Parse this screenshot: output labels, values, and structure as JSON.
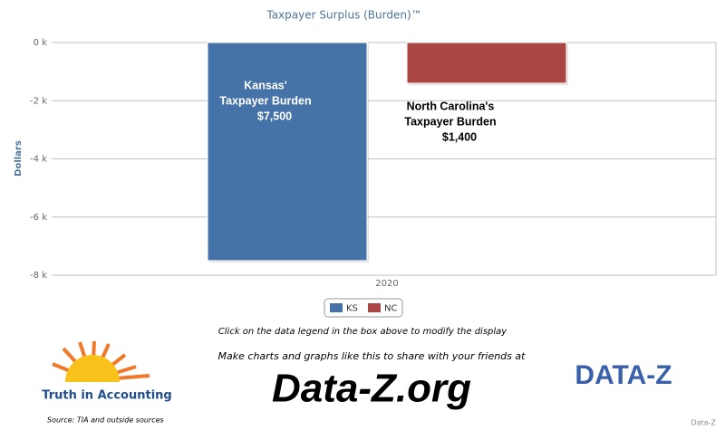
{
  "chart_data": {
    "type": "bar",
    "title": "Taxpayer Surplus (Burden)™",
    "y_label": "Dollars",
    "categories": [
      "2020"
    ],
    "series": [
      {
        "name": "KS",
        "color": "#4572a7",
        "values": [
          -7500
        ]
      },
      {
        "name": "NC",
        "color": "#aa4643",
        "values": [
          -1400
        ]
      }
    ],
    "ylim": [
      -8000,
      0
    ],
    "yticks": [
      {
        "value": 0,
        "label": "0 k"
      },
      {
        "value": -2000,
        "label": "-2 k"
      },
      {
        "value": -4000,
        "label": "-4 k"
      },
      {
        "value": -6000,
        "label": "-6 k"
      },
      {
        "value": -8000,
        "label": "-8 k"
      }
    ],
    "grid": true,
    "annotations": [
      [
        "Kansas'",
        "Taxpayer Burden",
        "$7,500"
      ],
      [
        "North Carolina's",
        "Taxpayer Burden",
        "$1,400"
      ]
    ]
  },
  "footer": {
    "instruction": "Click on the data legend in the box above to modify the display",
    "promo": "Make charts and graphs like this to share with your friends at",
    "site": "Data-Z.org",
    "tia_logo": "Truth in Accounting",
    "dataz_logo": "DATA-Z",
    "source": "Source: TIA and outside sources",
    "credit": "Data-Z"
  }
}
